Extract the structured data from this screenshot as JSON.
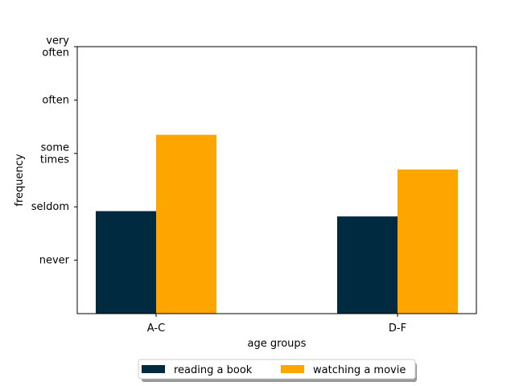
{
  "chart_data": {
    "type": "bar",
    "title": "",
    "xlabel": "age groups",
    "ylabel": "frequency",
    "categories": [
      "A-C",
      "D-F"
    ],
    "ylim": [
      0,
      5
    ],
    "yticks": [
      {
        "value": 1,
        "lines": [
          "never"
        ]
      },
      {
        "value": 2,
        "lines": [
          "seldom"
        ]
      },
      {
        "value": 3,
        "lines": [
          "some",
          "times"
        ]
      },
      {
        "value": 4,
        "lines": [
          "often"
        ]
      },
      {
        "value": 5,
        "lines": [
          "very",
          "often"
        ]
      }
    ],
    "series": [
      {
        "name": "reading a book",
        "color": "#002a3f",
        "values": [
          1.92,
          1.82
        ]
      },
      {
        "name": "watching a movie",
        "color": "#ffa500",
        "values": [
          3.35,
          2.7
        ]
      }
    ],
    "grid": false,
    "legend_position": "bottom-center"
  }
}
